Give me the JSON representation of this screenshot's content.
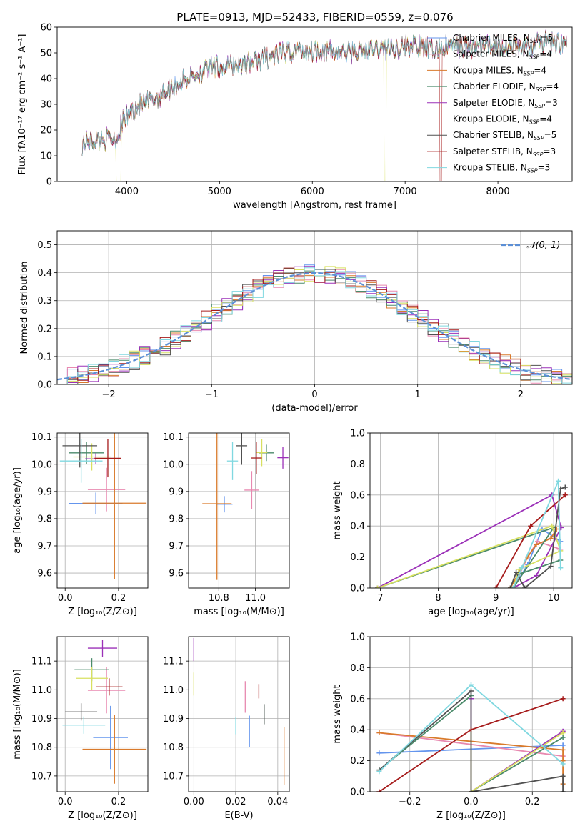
{
  "figure": {
    "title": "PLATE=0913, MJD=52433, FIBERID=0559, z=0.076",
    "colors": [
      "#6495ed",
      "#e889b0",
      "#d97a2b",
      "#4a8a6a",
      "#9b30b8",
      "#d8e060",
      "#505050",
      "#a61c1c",
      "#80d8e0"
    ]
  },
  "chart_data": [
    {
      "type": "line",
      "panel": "spectrum",
      "xlabel": "wavelength [Angstrom, rest frame]",
      "ylabel": "Flux [fλ10⁻¹⁷ erg cm⁻² s⁻¹ A⁻¹]",
      "xlim": [
        3250,
        8800
      ],
      "ylim": [
        0,
        60
      ],
      "xticks": [
        "4000",
        "5000",
        "6000",
        "7000",
        "8000"
      ],
      "yticks": [
        "0",
        "10",
        "20",
        "30",
        "40",
        "50",
        "60"
      ],
      "legend_position": "right",
      "series": [
        {
          "name": "Chabrier MILES, N",
          "sub": "SSP",
          "suffix": "=5"
        },
        {
          "name": "Salpeter MILES, N",
          "sub": "SSP",
          "suffix": "=4"
        },
        {
          "name": "Kroupa MILES, N",
          "sub": "SSP",
          "suffix": "=4"
        },
        {
          "name": "Chabrier ELODIE, N",
          "sub": "SSP",
          "suffix": "=4"
        },
        {
          "name": "Salpeter ELODIE, N",
          "sub": "SSP",
          "suffix": "=3"
        },
        {
          "name": "Kroupa ELODIE, N",
          "sub": "SSP",
          "suffix": "=4"
        },
        {
          "name": "Chabrier STELIB, N",
          "sub": "SSP",
          "suffix": "=5"
        },
        {
          "name": "Salpeter STELIB, N",
          "sub": "SSP",
          "suffix": "=3"
        },
        {
          "name": "Kroupa STELIB, N",
          "sub": "SSP",
          "suffix": "=3"
        }
      ],
      "continuum_x": [
        3520,
        3700,
        3900,
        3950,
        4100,
        4300,
        4500,
        4700,
        4900,
        5100,
        5300,
        5500,
        5700,
        5900,
        6100,
        6300,
        6600,
        6900,
        7100,
        7300,
        7500,
        7700,
        7900,
        8100,
        8300,
        8500,
        8750
      ],
      "continuum_y": [
        15,
        16,
        17,
        23,
        29,
        32,
        37,
        41,
        44,
        45,
        46,
        48,
        50,
        51,
        51,
        50,
        51,
        52,
        53,
        51,
        53,
        52,
        53,
        53,
        52,
        54,
        54
      ]
    },
    {
      "type": "line",
      "panel": "residuals",
      "xlabel": "(data-model)/error",
      "ylabel": "Normed distribution",
      "xlim": [
        -2.5,
        2.5
      ],
      "ylim": [
        0,
        0.55
      ],
      "xticks": [
        "−2",
        "−1",
        "0",
        "1",
        "2"
      ],
      "yticks": [
        "0.0",
        "0.1",
        "0.2",
        "0.3",
        "0.4",
        "0.5"
      ],
      "legend": "𝒩(0, 1)",
      "legend_position": "top-right"
    },
    {
      "type": "scatter",
      "panel": "Z-age",
      "xlabel": "Z [log₁₀(Z/Z⊙)]",
      "ylabel": "age  [log₁₀(age/yr)]",
      "xlim": [
        -0.03,
        0.31
      ],
      "ylim": [
        9.545,
        10.115
      ],
      "xticks": [
        "0.0",
        "0.2"
      ],
      "yticks": [
        "9.6",
        "9.7",
        "9.8",
        "9.9",
        "10.0",
        "10.1"
      ],
      "points": [
        {
          "x": 0.115,
          "y": 9.856,
          "xerr": 0.1,
          "yerr": 0.04
        },
        {
          "x": 0.155,
          "y": 9.907,
          "xerr": 0.07,
          "yerr": 0.08
        },
        {
          "x": 0.185,
          "y": 9.857,
          "xerr": 0.12,
          "yerr": 0.28
        },
        {
          "x": 0.08,
          "y": 10.042,
          "xerr": 0.065,
          "yerr": 0.04
        },
        {
          "x": 0.115,
          "y": 10.02,
          "xerr": 0.04,
          "yerr": 0.02
        },
        {
          "x": 0.1,
          "y": 10.027,
          "xerr": 0.07,
          "yerr": 0.05
        },
        {
          "x": 0.055,
          "y": 10.068,
          "xerr": 0.065,
          "yerr": 0.08
        },
        {
          "x": 0.16,
          "y": 10.022,
          "xerr": 0.05,
          "yerr": 0.07
        },
        {
          "x": 0.06,
          "y": 10.012,
          "xerr": 0.08,
          "yerr": 0.08
        }
      ]
    },
    {
      "type": "scatter",
      "panel": "mass-age",
      "xlabel": "mass [log₁₀(M/M⊙)]",
      "ylabel": "",
      "xlim": [
        10.635,
        11.185
      ],
      "ylim": [
        9.545,
        10.115
      ],
      "xticks": [
        "10.8",
        "11.0"
      ],
      "yticks": [
        "9.6",
        "9.7",
        "9.8",
        "9.9",
        "10.0",
        "10.1"
      ],
      "points": [
        {
          "x": 10.83,
          "y": 9.853,
          "xerr": 0.045,
          "yerr": 0.03
        },
        {
          "x": 10.98,
          "y": 9.905,
          "xerr": 0.04,
          "yerr": 0.07
        },
        {
          "x": 10.79,
          "y": 9.855,
          "xerr": 0.08,
          "yerr": 0.28
        },
        {
          "x": 11.06,
          "y": 10.042,
          "xerr": 0.04,
          "yerr": 0.03
        },
        {
          "x": 11.15,
          "y": 10.024,
          "xerr": 0.03,
          "yerr": 0.04
        },
        {
          "x": 11.035,
          "y": 10.043,
          "xerr": 0.03,
          "yerr": 0.05
        },
        {
          "x": 10.925,
          "y": 10.068,
          "xerr": 0.03,
          "yerr": 0.07
        },
        {
          "x": 11.005,
          "y": 10.023,
          "xerr": 0.03,
          "yerr": 0.06
        },
        {
          "x": 10.875,
          "y": 10.012,
          "xerr": 0.03,
          "yerr": 0.07
        }
      ]
    },
    {
      "type": "line",
      "panel": "age-weight",
      "xlabel": "age  [log₁₀(age/yr)]",
      "ylabel": "mass weight",
      "xlim": [
        6.82,
        10.32
      ],
      "ylim": [
        0,
        1
      ],
      "xticks": [
        "7",
        "8",
        "9",
        "10"
      ],
      "yticks": [
        "0.0",
        "0.2",
        "0.4",
        "0.6",
        "0.8",
        "1.0"
      ],
      "series": [
        {
          "x": [
            9.3,
            9.55,
            9.8,
            10.12
          ],
          "y": [
            0.0,
            0.15,
            0.38,
            0.3
          ]
        },
        {
          "x": [
            9.3,
            9.55,
            9.72,
            10.12,
            10.1
          ],
          "y": [
            0.0,
            0.2,
            0.3,
            0.25,
            0.25
          ]
        },
        {
          "x": [
            9.25,
            9.55,
            9.7,
            9.95,
            10.05
          ],
          "y": [
            0.0,
            0.2,
            0.28,
            0.32,
            0.38
          ]
        },
        {
          "x": [
            6.95,
            10.0,
            9.3,
            9.4,
            10.12
          ],
          "y": [
            0.0,
            0.39,
            0.0,
            0.09,
            0.18
          ]
        },
        {
          "x": [
            6.95,
            9.97,
            10.13,
            9.7,
            9.3
          ],
          "y": [
            0.0,
            0.6,
            0.39,
            0.08,
            0.0
          ]
        },
        {
          "x": [
            6.95,
            9.97,
            10.12,
            9.4,
            9.3
          ],
          "y": [
            0.0,
            0.4,
            0.24,
            0.12,
            0.0
          ]
        },
        {
          "x": [
            9.25,
            9.35,
            9.5,
            9.95,
            10.12,
            10.2
          ],
          "y": [
            0.0,
            0.1,
            0.0,
            0.14,
            0.64,
            0.65
          ]
        },
        {
          "x": [
            9.0,
            9.6,
            10.2
          ],
          "y": [
            0.0,
            0.4,
            0.6
          ]
        },
        {
          "x": [
            9.3,
            9.45,
            10.08,
            10.12
          ],
          "y": [
            0.0,
            0.13,
            0.69,
            0.13
          ]
        }
      ]
    },
    {
      "type": "scatter",
      "panel": "Z-mass",
      "xlabel": "Z [log₁₀(Z/Z⊙)]",
      "ylabel": "mass [log₁₀(M/M⊙)]",
      "xlim": [
        -0.03,
        0.31
      ],
      "ylim": [
        10.645,
        11.185
      ],
      "xticks": [
        "0.0",
        "0.2"
      ],
      "yticks": [
        "10.7",
        "10.8",
        "10.9",
        "11.0",
        "11.1"
      ],
      "points": [
        {
          "x": 0.17,
          "y": 10.834,
          "xerr": 0.065,
          "yerr": 0.11
        },
        {
          "x": 0.155,
          "y": 10.998,
          "xerr": 0.07,
          "yerr": 0.08
        },
        {
          "x": 0.185,
          "y": 10.793,
          "xerr": 0.12,
          "yerr": 0.12
        },
        {
          "x": 0.1,
          "y": 11.07,
          "xerr": 0.065,
          "yerr": 0.04
        },
        {
          "x": 0.14,
          "y": 11.145,
          "xerr": 0.055,
          "yerr": 0.03
        },
        {
          "x": 0.1,
          "y": 11.04,
          "xerr": 0.06,
          "yerr": 0.04
        },
        {
          "x": 0.06,
          "y": 10.923,
          "xerr": 0.06,
          "yerr": 0.03
        },
        {
          "x": 0.165,
          "y": 11.01,
          "xerr": 0.05,
          "yerr": 0.03
        },
        {
          "x": 0.07,
          "y": 10.877,
          "xerr": 0.08,
          "yerr": 0.03
        }
      ]
    },
    {
      "type": "scatter",
      "panel": "EBV-mass",
      "xlabel": "E(B-V)",
      "ylabel": "",
      "xlim": [
        -0.0025,
        0.0455
      ],
      "ylim": [
        10.645,
        11.185
      ],
      "xticks": [
        "0.00",
        "0.02",
        "0.04"
      ],
      "yticks": [
        "10.7",
        "10.8",
        "10.9",
        "11.0",
        "11.1"
      ],
      "points": [
        {
          "x": 0.0265,
          "y": 10.855,
          "yerr": 0.055
        },
        {
          "x": 0.0245,
          "y": 10.975,
          "yerr": 0.055
        },
        {
          "x": 0.043,
          "y": 10.77,
          "yerr": 0.1
        },
        {
          "x": 0.0335,
          "y": 10.915,
          "yerr": 0.035
        },
        {
          "x": 0.0,
          "y": 11.14,
          "yerr": 0.04
        },
        {
          "x": 0.0,
          "y": 11.02,
          "yerr": 0.04
        },
        {
          "x": 0.0335,
          "y": 10.915,
          "yerr": 0.035
        },
        {
          "x": 0.031,
          "y": 10.995,
          "yerr": 0.025
        },
        {
          "x": 0.02,
          "y": 10.875,
          "yerr": 0.03
        }
      ]
    },
    {
      "type": "line",
      "panel": "Z-weight",
      "xlabel": "Z [log₁₀(Z/Z⊙)]",
      "ylabel": "mass weight",
      "xlim": [
        -0.33,
        0.33
      ],
      "ylim": [
        0,
        1
      ],
      "xticks": [
        "−0.2",
        "0.0",
        "0.2"
      ],
      "yticks": [
        "0.0",
        "0.2",
        "0.4",
        "0.6",
        "0.8",
        "1.0"
      ],
      "series": [
        {
          "x": [
            -0.3,
            0.3,
            0.3
          ],
          "y": [
            0.25,
            0.3,
            0.3
          ]
        },
        {
          "x": [
            -0.3,
            0.3,
            0.3
          ],
          "y": [
            0.38,
            0.23,
            0.23
          ]
        },
        {
          "x": [
            -0.3,
            0.3,
            0.3,
            0.3
          ],
          "y": [
            0.38,
            0.27,
            0.2,
            0.05
          ]
        },
        {
          "x": [
            -0.3,
            0.0,
            0.0,
            0.3
          ],
          "y": [
            0.14,
            0.62,
            0.0,
            0.35
          ]
        },
        {
          "x": [
            0.0,
            0.0,
            0.3,
            0.3
          ],
          "y": [
            0.6,
            0.0,
            0.39,
            0.39
          ]
        },
        {
          "x": [
            0.0,
            0.0,
            0.3
          ],
          "y": [
            0.4,
            0.0,
            0.38
          ]
        },
        {
          "x": [
            -0.3,
            0.0,
            0.0,
            0.3,
            0.3
          ],
          "y": [
            0.14,
            0.65,
            0.0,
            0.1,
            0.0
          ]
        },
        {
          "x": [
            -0.3,
            0.0,
            0.3
          ],
          "y": [
            0.0,
            0.4,
            0.6
          ]
        },
        {
          "x": [
            -0.3,
            0.0,
            0.3
          ],
          "y": [
            0.13,
            0.69,
            0.18
          ]
        }
      ]
    }
  ]
}
